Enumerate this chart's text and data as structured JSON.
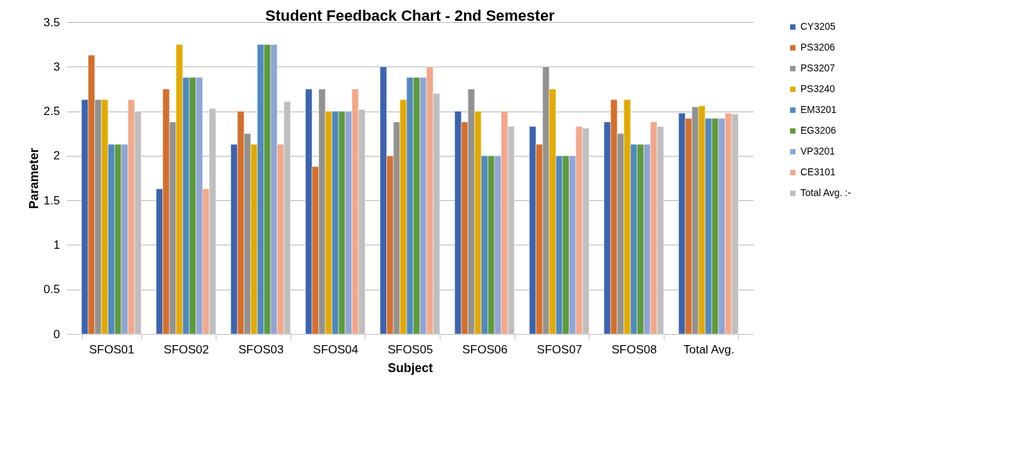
{
  "chart_data": {
    "type": "bar",
    "title": "Student Feedback Chart - 2nd Semester",
    "xlabel": "Subject",
    "ylabel": "Parameter",
    "categories": [
      "SFOS01",
      "SFOS02",
      "SFOS03",
      "SFOS04",
      "SFOS05",
      "SFOS06",
      "SFOS07",
      "SFOS08",
      "Total Avg."
    ],
    "series": [
      {
        "name": "CY3205",
        "color": "#3c64ae",
        "values": [
          2.63,
          1.63,
          2.13,
          2.75,
          3.0,
          2.5,
          2.33,
          2.38,
          2.48
        ]
      },
      {
        "name": "PS3206",
        "color": "#d56f2c",
        "values": [
          3.13,
          2.75,
          2.5,
          1.88,
          2.0,
          2.38,
          2.13,
          2.63,
          2.42
        ]
      },
      {
        "name": "PS3207",
        "color": "#929292",
        "values": [
          2.63,
          2.38,
          2.25,
          2.75,
          2.38,
          2.75,
          3.0,
          2.25,
          2.55
        ]
      },
      {
        "name": "PS3240",
        "color": "#e2aa00",
        "values": [
          2.63,
          3.25,
          2.13,
          2.5,
          2.63,
          2.5,
          2.75,
          2.63,
          2.56
        ]
      },
      {
        "name": "EM3201",
        "color": "#4f89bf",
        "values": [
          2.13,
          2.88,
          3.25,
          2.5,
          2.88,
          2.0,
          2.0,
          2.13,
          2.42
        ]
      },
      {
        "name": "EG3206",
        "color": "#5f9a3c",
        "values": [
          2.13,
          2.88,
          3.25,
          2.5,
          2.88,
          2.0,
          2.0,
          2.13,
          2.42
        ]
      },
      {
        "name": "VP3201",
        "color": "#8fa5d6",
        "values": [
          2.13,
          2.88,
          3.25,
          2.5,
          2.88,
          2.0,
          2.0,
          2.13,
          2.42
        ]
      },
      {
        "name": "CE3101",
        "color": "#f1a88a",
        "values": [
          2.63,
          1.63,
          2.13,
          2.75,
          3.0,
          2.5,
          2.33,
          2.38,
          2.48
        ]
      },
      {
        "name": "Total Avg. :-",
        "color": "#bfbfbf",
        "values": [
          2.5,
          2.53,
          2.61,
          2.52,
          2.7,
          2.33,
          2.31,
          2.33,
          2.47
        ]
      }
    ],
    "ylim": [
      0,
      3.5
    ],
    "yticks": [
      0,
      0.5,
      1,
      1.5,
      2,
      2.5,
      3,
      3.5
    ],
    "grid": "y",
    "legend": "right"
  }
}
